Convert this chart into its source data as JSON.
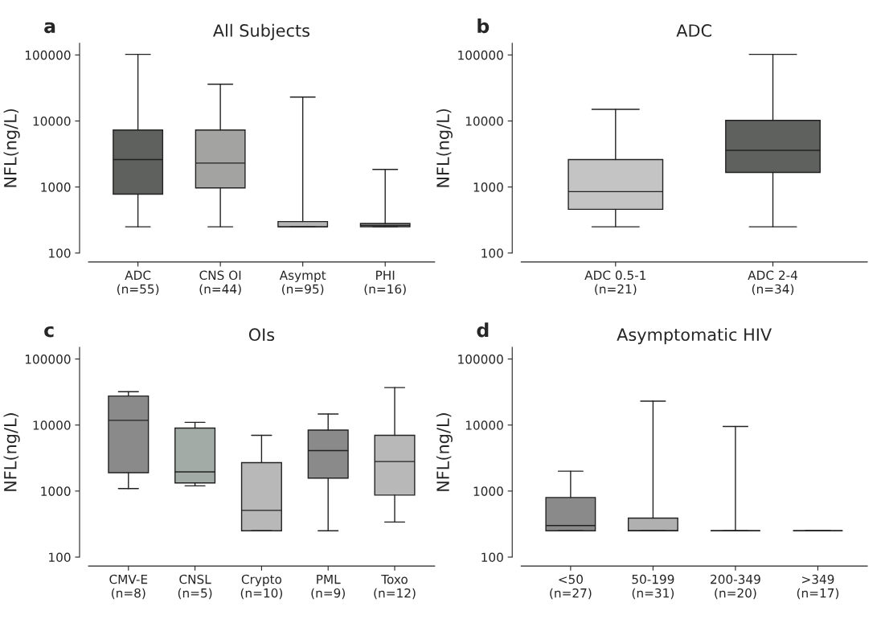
{
  "chart_data": [
    {
      "type": "box",
      "title": "All Subjects",
      "ylabel": "NFL(ng/L)",
      "annotations": [
        "a"
      ],
      "log": "y",
      "ylim": [
        100,
        150000
      ],
      "yticks": [
        100,
        1000,
        10000,
        100000
      ],
      "categories": [
        "ADC\n(n=55)",
        "CNS OI\n(n=44)",
        "Asympt\n(n=95)",
        "PHI\n(n=16)"
      ],
      "colors": [
        "#5f615e",
        "#a3a4a2",
        "#b5b5b5",
        "#7c7d7b"
      ],
      "boxes": [
        {
          "low": 250,
          "q1": 780,
          "median": 2600,
          "q3": 7300,
          "high": 102000
        },
        {
          "low": 250,
          "q1": 970,
          "median": 2300,
          "q3": 7300,
          "high": 36000
        },
        {
          "low": 250,
          "q1": 250,
          "median": 250,
          "q3": 300,
          "high": 23000
        },
        {
          "low": 250,
          "q1": 250,
          "median": 260,
          "q3": 280,
          "high": 1850
        }
      ]
    },
    {
      "type": "box",
      "title": "ADC",
      "ylabel": "NFL(ng/L)",
      "annotations": [
        "b"
      ],
      "log": "y",
      "ylim": [
        100,
        150000
      ],
      "yticks": [
        100,
        1000,
        10000,
        100000
      ],
      "categories": [
        "ADC 0.5-1\n(n=21)",
        "ADC 2-4\n(n=34)"
      ],
      "colors": [
        "#c4c4c4",
        "#5f615e"
      ],
      "boxes": [
        {
          "low": 250,
          "q1": 460,
          "median": 850,
          "q3": 2600,
          "high": 15000
        },
        {
          "low": 250,
          "q1": 1660,
          "median": 3600,
          "q3": 10200,
          "high": 102000
        }
      ]
    },
    {
      "type": "box",
      "title": "OIs",
      "ylabel": "NFL(ng/L)",
      "annotations": [
        "c"
      ],
      "log": "y",
      "ylim": [
        100,
        150000
      ],
      "yticks": [
        100,
        1000,
        10000,
        100000
      ],
      "categories": [
        "CMV-E\n(n=8)",
        "CNSL\n(n=5)",
        "Crypto\n(n=10)",
        "PML\n(n=9)",
        "Toxo\n(n=12)"
      ],
      "colors": [
        "#8a8a8a",
        "#a3aba6",
        "#b8b8b8",
        "#8a8a8a",
        "#b8b8b8"
      ],
      "boxes": [
        {
          "low": 1090,
          "q1": 1900,
          "median": 11800,
          "q3": 27500,
          "high": 32000
        },
        {
          "low": 1200,
          "q1": 1330,
          "median": 1950,
          "q3": 9000,
          "high": 11000
        },
        {
          "low": 250,
          "q1": 250,
          "median": 510,
          "q3": 2700,
          "high": 7000
        },
        {
          "low": 250,
          "q1": 1570,
          "median": 4100,
          "q3": 8400,
          "high": 14700
        },
        {
          "low": 340,
          "q1": 870,
          "median": 2800,
          "q3": 7000,
          "high": 37000
        }
      ]
    },
    {
      "type": "box",
      "title": "Asymptomatic HIV",
      "ylabel": "NFL(ng/L)",
      "annotations": [
        "d"
      ],
      "log": "y",
      "ylim": [
        100,
        150000
      ],
      "yticks": [
        100,
        1000,
        10000,
        100000
      ],
      "categories": [
        "<50\n(n=27)",
        "50-199\n(n=31)",
        "200-349\n(n=20)",
        ">349\n(n=17)"
      ],
      "colors": [
        "#8a8a8a",
        "#b0b0b0",
        "#222222",
        "#222222"
      ],
      "boxes": [
        {
          "low": 250,
          "q1": 250,
          "median": 300,
          "q3": 800,
          "high": 2000
        },
        {
          "low": 250,
          "q1": 250,
          "median": 250,
          "q3": 390,
          "high": 23000
        },
        {
          "low": 250,
          "q1": 250,
          "median": 250,
          "q3": 250,
          "high": 9500
        },
        {
          "low": 250,
          "q1": 250,
          "median": 250,
          "q3": 250,
          "high": 250
        }
      ]
    }
  ]
}
